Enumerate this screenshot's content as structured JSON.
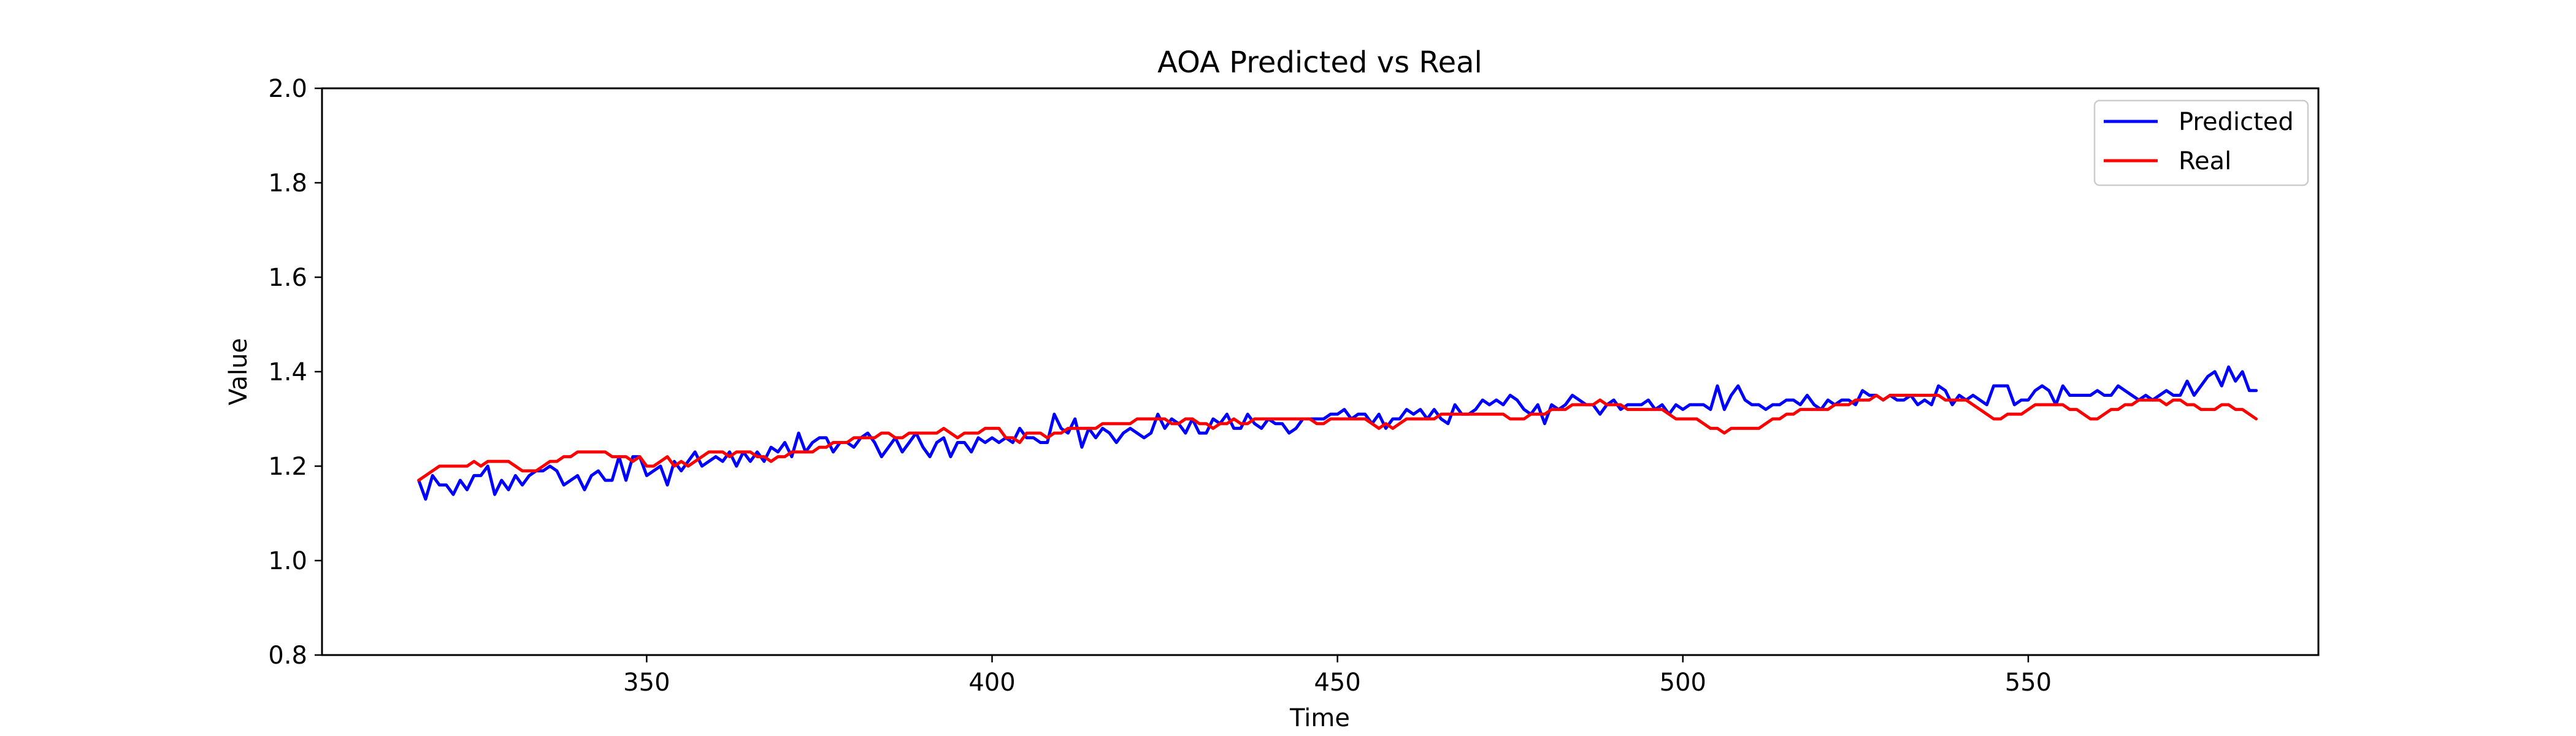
{
  "chart_data": {
    "type": "line",
    "title": "AOA Predicted vs Real",
    "xlabel": "Time",
    "ylabel": "Value",
    "xlim": [
      303,
      592
    ],
    "ylim": [
      0.8,
      2.0
    ],
    "xticks": [
      350,
      400,
      450,
      500,
      550
    ],
    "yticks": [
      0.8,
      1.0,
      1.2,
      1.4,
      1.6,
      1.8,
      2.0
    ],
    "ytick_labels": [
      "0.8",
      "1.0",
      "1.2",
      "1.4",
      "1.6",
      "1.8",
      "2.0"
    ],
    "grid": false,
    "legend_position": "upper right",
    "series": [
      {
        "name": "Predicted",
        "color": "#0000ff",
        "x_start": 317,
        "x_step": 1,
        "values": [
          1.17,
          1.13,
          1.18,
          1.16,
          1.16,
          1.14,
          1.17,
          1.15,
          1.18,
          1.18,
          1.2,
          1.14,
          1.17,
          1.15,
          1.18,
          1.16,
          1.18,
          1.19,
          1.19,
          1.2,
          1.19,
          1.16,
          1.17,
          1.18,
          1.15,
          1.18,
          1.19,
          1.17,
          1.17,
          1.22,
          1.17,
          1.22,
          1.22,
          1.18,
          1.19,
          1.2,
          1.16,
          1.21,
          1.19,
          1.21,
          1.23,
          1.2,
          1.21,
          1.22,
          1.21,
          1.23,
          1.2,
          1.23,
          1.21,
          1.23,
          1.21,
          1.24,
          1.23,
          1.25,
          1.22,
          1.27,
          1.23,
          1.25,
          1.26,
          1.26,
          1.23,
          1.25,
          1.25,
          1.24,
          1.26,
          1.27,
          1.25,
          1.22,
          1.24,
          1.26,
          1.23,
          1.25,
          1.27,
          1.24,
          1.22,
          1.25,
          1.26,
          1.22,
          1.25,
          1.25,
          1.23,
          1.26,
          1.25,
          1.26,
          1.25,
          1.26,
          1.25,
          1.28,
          1.26,
          1.26,
          1.25,
          1.25,
          1.31,
          1.28,
          1.27,
          1.3,
          1.24,
          1.28,
          1.26,
          1.28,
          1.27,
          1.25,
          1.27,
          1.28,
          1.27,
          1.26,
          1.27,
          1.31,
          1.28,
          1.3,
          1.29,
          1.27,
          1.3,
          1.27,
          1.27,
          1.3,
          1.29,
          1.31,
          1.28,
          1.28,
          1.31,
          1.29,
          1.28,
          1.3,
          1.29,
          1.29,
          1.27,
          1.28,
          1.3,
          1.3,
          1.3,
          1.3,
          1.31,
          1.31,
          1.32,
          1.3,
          1.31,
          1.31,
          1.29,
          1.31,
          1.28,
          1.3,
          1.3,
          1.32,
          1.31,
          1.32,
          1.3,
          1.32,
          1.3,
          1.29,
          1.33,
          1.31,
          1.31,
          1.32,
          1.34,
          1.33,
          1.34,
          1.33,
          1.35,
          1.34,
          1.32,
          1.31,
          1.33,
          1.29,
          1.33,
          1.32,
          1.33,
          1.35,
          1.34,
          1.33,
          1.33,
          1.31,
          1.33,
          1.34,
          1.32,
          1.33,
          1.33,
          1.33,
          1.34,
          1.32,
          1.33,
          1.31,
          1.33,
          1.32,
          1.33,
          1.33,
          1.33,
          1.32,
          1.37,
          1.32,
          1.35,
          1.37,
          1.34,
          1.33,
          1.33,
          1.32,
          1.33,
          1.33,
          1.34,
          1.34,
          1.33,
          1.35,
          1.33,
          1.32,
          1.34,
          1.33,
          1.34,
          1.34,
          1.33,
          1.36,
          1.35,
          1.35,
          1.34,
          1.35,
          1.34,
          1.34,
          1.35,
          1.33,
          1.34,
          1.33,
          1.37,
          1.36,
          1.33,
          1.35,
          1.34,
          1.35,
          1.34,
          1.33,
          1.37,
          1.37,
          1.37,
          1.33,
          1.34,
          1.34,
          1.36,
          1.37,
          1.36,
          1.33,
          1.37,
          1.35,
          1.35,
          1.35,
          1.35,
          1.36,
          1.35,
          1.35,
          1.37,
          1.36,
          1.35,
          1.34,
          1.35,
          1.34,
          1.35,
          1.36,
          1.35,
          1.35,
          1.38,
          1.35,
          1.37,
          1.39,
          1.4,
          1.37,
          1.41,
          1.38,
          1.4,
          1.36,
          1.36
        ]
      },
      {
        "name": "Real",
        "color": "#ff0000",
        "x_start": 317,
        "x_step": 1,
        "values": [
          1.17,
          1.18,
          1.19,
          1.2,
          1.2,
          1.2,
          1.2,
          1.2,
          1.21,
          1.2,
          1.21,
          1.21,
          1.21,
          1.21,
          1.2,
          1.19,
          1.19,
          1.19,
          1.2,
          1.21,
          1.21,
          1.22,
          1.22,
          1.23,
          1.23,
          1.23,
          1.23,
          1.23,
          1.22,
          1.22,
          1.22,
          1.21,
          1.22,
          1.2,
          1.2,
          1.21,
          1.22,
          1.2,
          1.21,
          1.2,
          1.21,
          1.22,
          1.23,
          1.23,
          1.23,
          1.22,
          1.23,
          1.23,
          1.23,
          1.22,
          1.22,
          1.21,
          1.22,
          1.22,
          1.23,
          1.23,
          1.23,
          1.23,
          1.24,
          1.24,
          1.25,
          1.25,
          1.25,
          1.26,
          1.26,
          1.26,
          1.26,
          1.27,
          1.27,
          1.26,
          1.26,
          1.27,
          1.27,
          1.27,
          1.27,
          1.27,
          1.28,
          1.27,
          1.26,
          1.27,
          1.27,
          1.27,
          1.28,
          1.28,
          1.28,
          1.26,
          1.26,
          1.25,
          1.27,
          1.27,
          1.27,
          1.26,
          1.27,
          1.27,
          1.28,
          1.28,
          1.28,
          1.28,
          1.28,
          1.29,
          1.29,
          1.29,
          1.29,
          1.29,
          1.3,
          1.3,
          1.3,
          1.3,
          1.3,
          1.29,
          1.29,
          1.3,
          1.3,
          1.29,
          1.29,
          1.28,
          1.29,
          1.29,
          1.3,
          1.29,
          1.29,
          1.3,
          1.3,
          1.3,
          1.3,
          1.3,
          1.3,
          1.3,
          1.3,
          1.3,
          1.29,
          1.29,
          1.3,
          1.3,
          1.3,
          1.3,
          1.3,
          1.3,
          1.29,
          1.28,
          1.29,
          1.28,
          1.29,
          1.3,
          1.3,
          1.3,
          1.3,
          1.3,
          1.31,
          1.31,
          1.31,
          1.31,
          1.31,
          1.31,
          1.31,
          1.31,
          1.31,
          1.31,
          1.3,
          1.3,
          1.3,
          1.31,
          1.31,
          1.31,
          1.32,
          1.32,
          1.32,
          1.33,
          1.33,
          1.33,
          1.33,
          1.34,
          1.33,
          1.33,
          1.33,
          1.32,
          1.32,
          1.32,
          1.32,
          1.32,
          1.32,
          1.31,
          1.3,
          1.3,
          1.3,
          1.3,
          1.29,
          1.28,
          1.28,
          1.27,
          1.28,
          1.28,
          1.28,
          1.28,
          1.28,
          1.29,
          1.3,
          1.3,
          1.31,
          1.31,
          1.32,
          1.32,
          1.32,
          1.32,
          1.32,
          1.33,
          1.33,
          1.33,
          1.34,
          1.34,
          1.34,
          1.35,
          1.34,
          1.35,
          1.35,
          1.35,
          1.35,
          1.35,
          1.35,
          1.35,
          1.35,
          1.34,
          1.34,
          1.34,
          1.34,
          1.33,
          1.32,
          1.31,
          1.3,
          1.3,
          1.31,
          1.31,
          1.31,
          1.32,
          1.33,
          1.33,
          1.33,
          1.33,
          1.33,
          1.32,
          1.32,
          1.31,
          1.3,
          1.3,
          1.31,
          1.32,
          1.32,
          1.33,
          1.33,
          1.34,
          1.34,
          1.34,
          1.34,
          1.33,
          1.34,
          1.34,
          1.33,
          1.33,
          1.32,
          1.32,
          1.32,
          1.33,
          1.33,
          1.32,
          1.32,
          1.31,
          1.3
        ]
      }
    ]
  }
}
